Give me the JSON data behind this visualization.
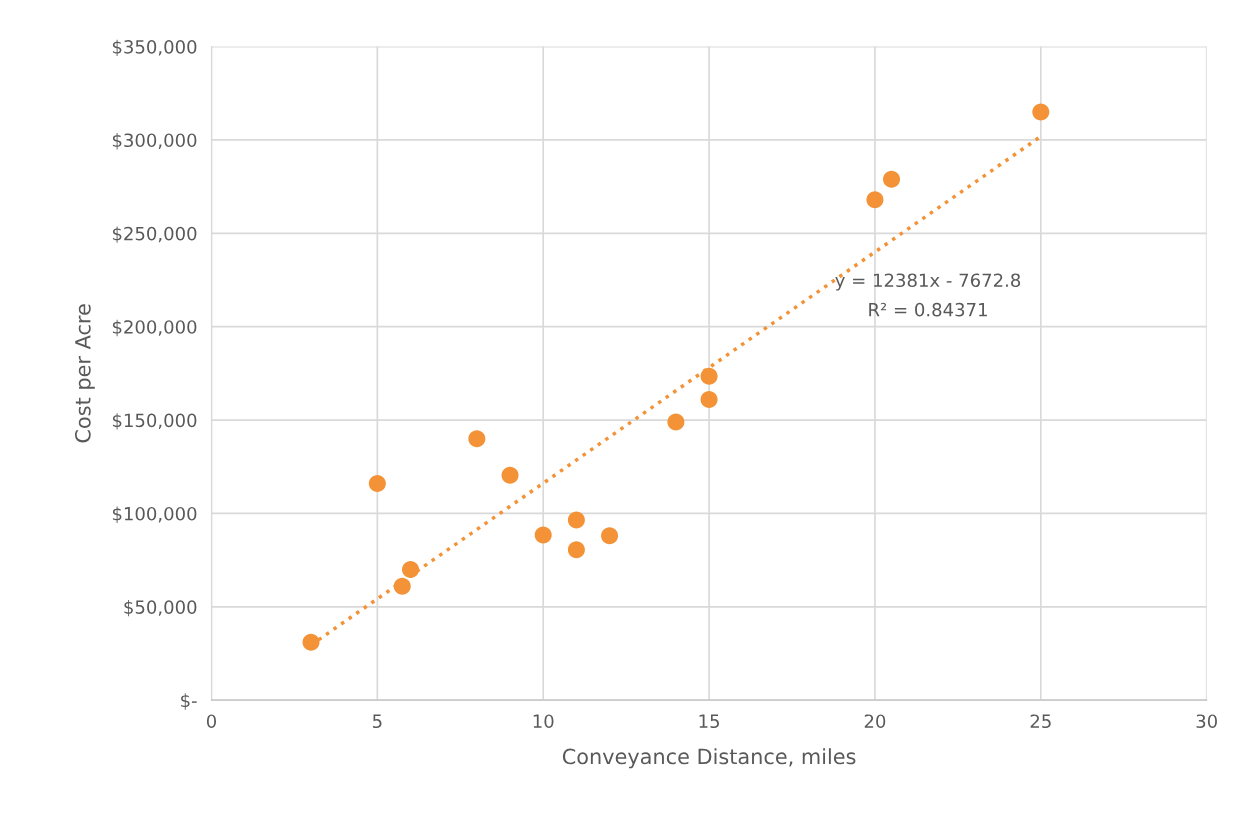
{
  "chart_data": {
    "type": "scatter",
    "xlabel": "Conveyance Distance, miles",
    "ylabel": "Cost per Acre",
    "xlim": [
      0,
      30
    ],
    "xticks": [
      0,
      5,
      10,
      15,
      20,
      25,
      30
    ],
    "ylim": [
      0,
      350000
    ],
    "yticks": [
      {
        "value": 0,
        "label": "$-"
      },
      {
        "value": 50000,
        "label": "$50,000"
      },
      {
        "value": 100000,
        "label": "$100,000"
      },
      {
        "value": 150000,
        "label": "$150,000"
      },
      {
        "value": 200000,
        "label": "$200,000"
      },
      {
        "value": 250000,
        "label": "$250,000"
      },
      {
        "value": 300000,
        "label": "$300,000"
      },
      {
        "value": 350000,
        "label": "$350,000"
      }
    ],
    "grid": true,
    "legend": false,
    "series": [
      {
        "color": "#f39237",
        "marker": "circle",
        "x": [
          3,
          5,
          5.75,
          6,
          8,
          9,
          10,
          11,
          11,
          12,
          14,
          15,
          15,
          20,
          20.5,
          25
        ],
        "values": [
          31000,
          116000,
          61000,
          70000,
          140000,
          120500,
          88500,
          96500,
          80500,
          88000,
          149000,
          173500,
          161000,
          268000,
          279000,
          315000
        ]
      },
      {
        "type": "line",
        "color": "#f39237",
        "marker": "none",
        "line_style": "dotted",
        "x": [
          3,
          25
        ],
        "values": [
          29500,
          301900
        ]
      }
    ],
    "annotations": [
      "y = 12381x - 7672.8",
      "R² = 0.84371"
    ]
  }
}
